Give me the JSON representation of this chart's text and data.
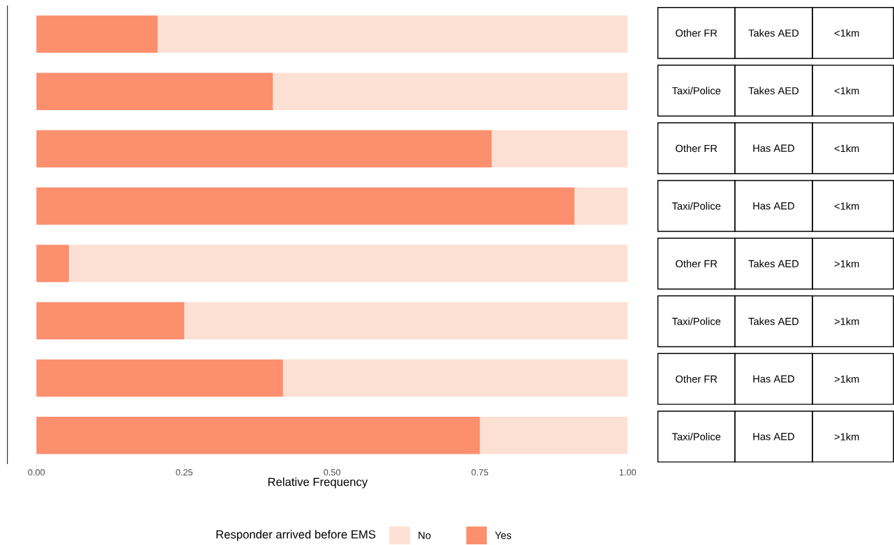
{
  "chart_data": {
    "type": "bar",
    "orientation": "horizontal",
    "stacked": true,
    "xlabel": "Relative Frequency",
    "legend_title": "Responder arrived before EMS",
    "legend": "bottom",
    "tick_labels": "x",
    "categories": [
      null,
      null,
      null,
      null,
      null,
      null,
      null,
      null
    ],
    "xlim": [
      -0.049,
      1
    ],
    "xticks": [
      {
        "value": 0,
        "label": "0.00"
      },
      {
        "value": 0.25,
        "label": "0.25"
      },
      {
        "value": 0.5,
        "label": "0.50"
      },
      {
        "value": 0.75,
        "label": "0.75"
      },
      {
        "value": 1,
        "label": "1.00"
      }
    ],
    "series": [
      {
        "name": "Yes",
        "color": "#fc8f6e",
        "values": [
          0.205,
          0.4,
          0.77,
          0.91,
          0.055,
          0.25,
          0.417,
          0.75
        ]
      },
      {
        "name": "No",
        "color": "#fde0d4",
        "values": [
          0.795,
          0.6,
          0.23,
          0.09,
          0.945,
          0.75,
          0.583,
          0.25
        ]
      }
    ],
    "annotations": [
      "Other FR",
      "Takes AED",
      "<1km",
      "Taxi/Police",
      "Takes AED",
      "<1km",
      "Other FR",
      "Has AED",
      "<1km",
      "Taxi/Police",
      "Has AED",
      "<1km",
      "Other FR",
      "Takes AED",
      ">1km",
      "Taxi/Police",
      "Takes AED",
      ">1km",
      "Other FR",
      "Has AED",
      ">1km",
      "Taxi/Police",
      "Has AED",
      ">1km"
    ]
  }
}
